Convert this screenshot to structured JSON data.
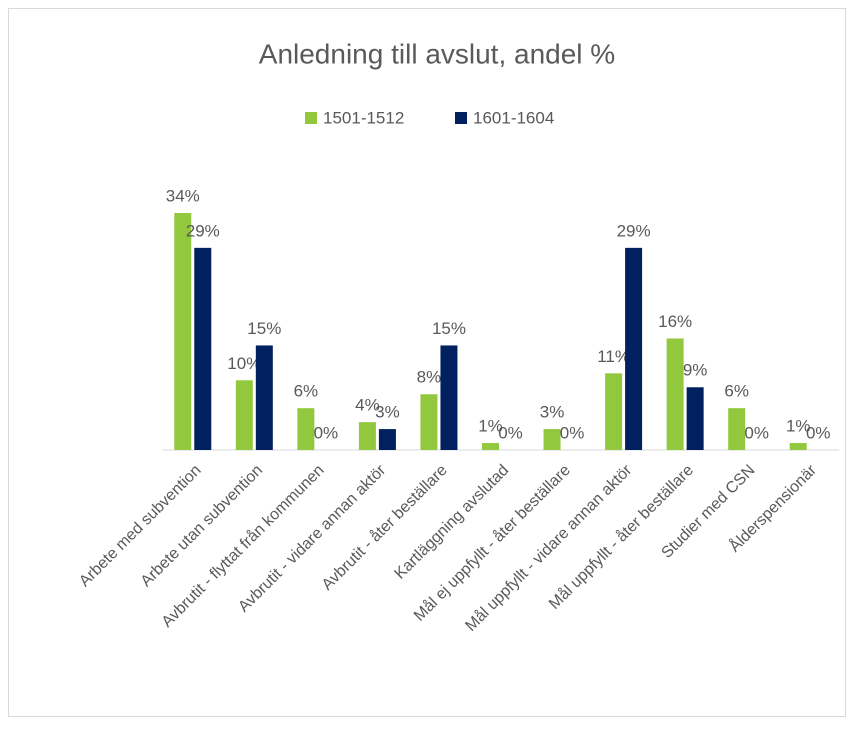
{
  "chart_data": {
    "type": "bar",
    "title": "Anledning till avslut, andel %",
    "categories": [
      "Arbete med subvention",
      "Arbete utan subvention",
      "Avbrutit - flyttat från kommunen",
      "Avbrutit - vidare annan aktör",
      "Avbrutit - åter beställare",
      "Kartläggning avslutad",
      "Mål ej uppfyllt - åter beställare",
      "Mål uppfyllt - vidare annan aktör",
      "Mål uppfyllt - åter beställare",
      "Studier med CSN",
      "Ålderspensionär"
    ],
    "series": [
      {
        "name": "1501-1512",
        "color": "#92c83e",
        "values": [
          34,
          10,
          6,
          4,
          8,
          1,
          3,
          11,
          16,
          6,
          1
        ],
        "value_labels": [
          "34%",
          "10%",
          "6%",
          "4%",
          "8%",
          "1%",
          "3%",
          "11%",
          "16%",
          "6%",
          "1%"
        ]
      },
      {
        "name": "1601-1604",
        "color": "#002060",
        "values": [
          29,
          15,
          0,
          3,
          15,
          0,
          0,
          29,
          9,
          0,
          0
        ],
        "value_labels": [
          "29%",
          "15%",
          "0%",
          "3%",
          "15%",
          "0%",
          "0%",
          "29%",
          "9%",
          "0%",
          "0%"
        ]
      }
    ],
    "legend": "top"
  }
}
